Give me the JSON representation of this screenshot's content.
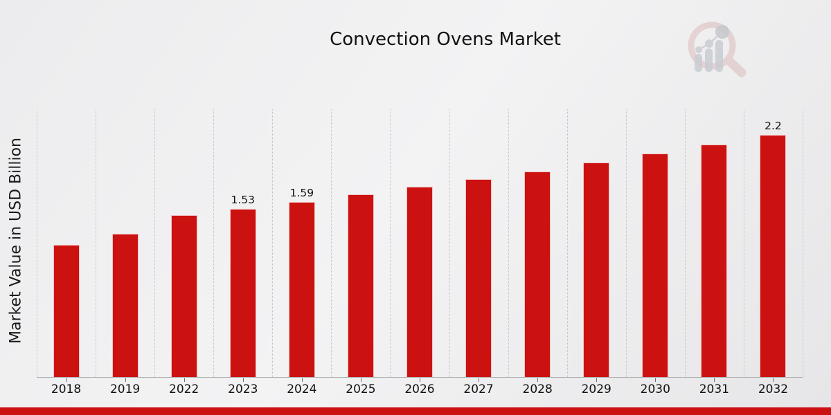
{
  "header": {
    "title": "Convection Ovens Market"
  },
  "logo": {
    "name": "magnifier-bar-chart-watermark"
  },
  "chart_data": {
    "type": "bar",
    "title": "Convection Ovens Market",
    "xlabel": "",
    "ylabel": "Market Value in USD Billion",
    "categories": [
      "2018",
      "2019",
      "2022",
      "2023",
      "2024",
      "2025",
      "2026",
      "2027",
      "2028",
      "2029",
      "2030",
      "2031",
      "2032"
    ],
    "values": [
      1.2,
      1.3,
      1.47,
      1.53,
      1.59,
      1.66,
      1.73,
      1.8,
      1.87,
      1.95,
      2.03,
      2.11,
      2.2
    ],
    "data_labels": {
      "2023": "1.53",
      "2024": "1.59",
      "2032": "2.2"
    },
    "unit": "USD Billion",
    "ylim": [
      0,
      2.433
    ],
    "grid": "vertical-dotted",
    "legend": null,
    "bar_color": "#cc1111",
    "accent_bar_color": "#cc1111",
    "axis_line_color": "#a8a8a8",
    "gridline_color": "#c2c2c4",
    "text_color": "#111111"
  }
}
